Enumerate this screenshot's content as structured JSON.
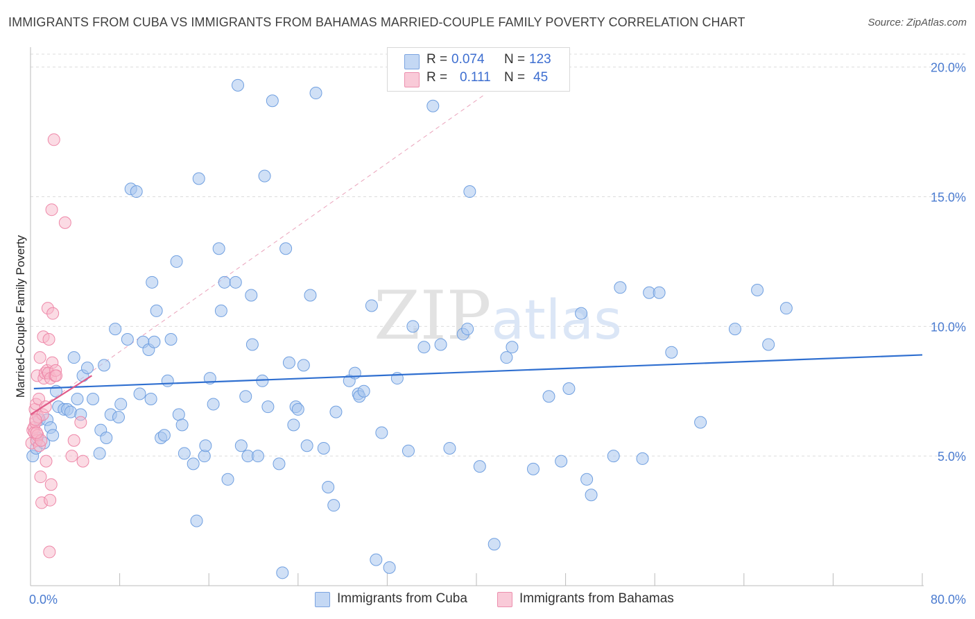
{
  "title": "IMMIGRANTS FROM CUBA VS IMMIGRANTS FROM BAHAMAS MARRIED-COUPLE FAMILY POVERTY CORRELATION CHART",
  "source": "Source: ZipAtlas.com",
  "watermark": "ZIPatlas",
  "legend_top": {
    "rows": [
      {
        "r_label": "R =",
        "r_value": "0.074",
        "n_label": "N =",
        "n_value": "123"
      },
      {
        "r_label": "R =",
        "r_value": "0.111",
        "n_label": "N =",
        "n_value": "45"
      }
    ]
  },
  "colors": {
    "cuba_fill": "#a9c6ee",
    "cuba_stroke": "#6f9fe0",
    "cuba_line": "#2f6fd0",
    "bahamas_fill": "#f7b8ca",
    "bahamas_stroke": "#ee87a8",
    "bahamas_line": "#e05a88",
    "axis_text": "#4a7bd0",
    "grid": "#dcdcdc"
  },
  "chart_data": {
    "type": "scatter",
    "xlabel": "",
    "ylabel": "Married-Couple Family Poverty",
    "xlim": [
      0,
      80
    ],
    "ylim": [
      0,
      20.5
    ],
    "x_tick_labels": [
      "0.0%",
      "80.0%"
    ],
    "y_ticks": [
      5,
      10,
      15,
      20
    ],
    "y_tick_labels": [
      "5.0%",
      "10.0%",
      "15.0%",
      "20.0%"
    ],
    "legend": [
      "Immigrants from Cuba",
      "Immigrants from Bahamas"
    ],
    "series": [
      {
        "name": "Immigrants from Cuba",
        "trend": {
          "x": [
            0.3,
            80.0
          ],
          "y": [
            7.6,
            8.9
          ]
        },
        "points": [
          [
            0.2,
            5.0
          ],
          [
            0.5,
            5.3
          ],
          [
            0.6,
            5.7
          ],
          [
            0.8,
            6.4
          ],
          [
            1.2,
            5.5
          ],
          [
            1.5,
            6.4
          ],
          [
            1.8,
            6.1
          ],
          [
            2.0,
            5.8
          ],
          [
            2.3,
            7.5
          ],
          [
            2.5,
            6.9
          ],
          [
            3.0,
            6.8
          ],
          [
            3.3,
            6.8
          ],
          [
            3.6,
            6.7
          ],
          [
            3.9,
            8.8
          ],
          [
            4.2,
            7.2
          ],
          [
            4.5,
            6.6
          ],
          [
            4.7,
            8.1
          ],
          [
            5.1,
            8.4
          ],
          [
            5.6,
            7.2
          ],
          [
            6.2,
            5.1
          ],
          [
            6.3,
            6.0
          ],
          [
            6.6,
            8.5
          ],
          [
            6.8,
            5.7
          ],
          [
            7.2,
            6.6
          ],
          [
            7.6,
            9.9
          ],
          [
            7.9,
            6.5
          ],
          [
            8.1,
            7.0
          ],
          [
            8.7,
            9.5
          ],
          [
            9.0,
            15.3
          ],
          [
            9.5,
            15.2
          ],
          [
            9.8,
            7.4
          ],
          [
            10.1,
            9.4
          ],
          [
            10.6,
            9.1
          ],
          [
            10.8,
            7.2
          ],
          [
            10.9,
            11.7
          ],
          [
            11.1,
            9.4
          ],
          [
            11.3,
            10.6
          ],
          [
            11.7,
            5.7
          ],
          [
            12.0,
            5.8
          ],
          [
            12.3,
            7.9
          ],
          [
            12.6,
            9.5
          ],
          [
            13.1,
            12.5
          ],
          [
            13.3,
            6.6
          ],
          [
            13.6,
            6.2
          ],
          [
            13.8,
            5.1
          ],
          [
            14.6,
            4.7
          ],
          [
            14.9,
            2.5
          ],
          [
            15.1,
            15.7
          ],
          [
            15.6,
            5.0
          ],
          [
            15.7,
            5.4
          ],
          [
            16.1,
            8.0
          ],
          [
            16.4,
            7.0
          ],
          [
            16.9,
            13.0
          ],
          [
            17.1,
            10.6
          ],
          [
            17.4,
            11.7
          ],
          [
            17.7,
            4.1
          ],
          [
            18.4,
            11.7
          ],
          [
            18.6,
            19.3
          ],
          [
            18.9,
            5.4
          ],
          [
            19.3,
            7.3
          ],
          [
            19.5,
            5.0
          ],
          [
            19.8,
            11.2
          ],
          [
            19.9,
            9.3
          ],
          [
            20.4,
            5.0
          ],
          [
            20.8,
            7.9
          ],
          [
            21.0,
            15.8
          ],
          [
            21.3,
            6.9
          ],
          [
            21.7,
            18.7
          ],
          [
            22.3,
            4.7
          ],
          [
            22.6,
            0.5
          ],
          [
            22.9,
            13.0
          ],
          [
            23.2,
            8.6
          ],
          [
            23.6,
            6.2
          ],
          [
            23.8,
            6.9
          ],
          [
            24.0,
            6.8
          ],
          [
            24.5,
            8.5
          ],
          [
            24.8,
            5.4
          ],
          [
            25.1,
            11.2
          ],
          [
            25.6,
            19.0
          ],
          [
            26.3,
            5.3
          ],
          [
            26.7,
            3.8
          ],
          [
            27.2,
            3.1
          ],
          [
            27.4,
            6.7
          ],
          [
            28.6,
            7.9
          ],
          [
            29.1,
            8.2
          ],
          [
            29.4,
            7.4
          ],
          [
            29.5,
            7.3
          ],
          [
            29.9,
            7.5
          ],
          [
            30.6,
            10.8
          ],
          [
            31.0,
            1.0
          ],
          [
            31.5,
            5.9
          ],
          [
            32.2,
            0.7
          ],
          [
            32.9,
            8.0
          ],
          [
            33.9,
            5.2
          ],
          [
            34.3,
            10.0
          ],
          [
            35.3,
            9.2
          ],
          [
            36.1,
            18.5
          ],
          [
            36.8,
            9.3
          ],
          [
            37.6,
            5.3
          ],
          [
            38.8,
            9.7
          ],
          [
            39.2,
            9.9
          ],
          [
            39.4,
            15.2
          ],
          [
            40.3,
            4.6
          ],
          [
            41.6,
            1.6
          ],
          [
            42.7,
            8.8
          ],
          [
            43.2,
            9.2
          ],
          [
            45.1,
            4.5
          ],
          [
            46.5,
            7.3
          ],
          [
            47.6,
            4.8
          ],
          [
            48.3,
            7.6
          ],
          [
            49.4,
            10.5
          ],
          [
            49.9,
            4.1
          ],
          [
            50.3,
            3.5
          ],
          [
            52.3,
            5.0
          ],
          [
            52.9,
            11.5
          ],
          [
            54.9,
            4.9
          ],
          [
            55.5,
            11.3
          ],
          [
            56.4,
            11.3
          ],
          [
            57.5,
            9.0
          ],
          [
            60.1,
            6.3
          ],
          [
            63.2,
            9.9
          ],
          [
            65.2,
            11.4
          ],
          [
            66.2,
            9.3
          ],
          [
            67.8,
            10.7
          ]
        ]
      },
      {
        "name": "Immigrants from Bahamas",
        "trend": {
          "x": [
            0.0,
            5.5
          ],
          "y": [
            6.6,
            8.1
          ]
        },
        "trend_extended": {
          "x": [
            0.0,
            40.6
          ],
          "y": [
            6.6,
            18.9
          ]
        },
        "points": [
          [
            0.1,
            5.5
          ],
          [
            0.2,
            6.0
          ],
          [
            0.3,
            6.1
          ],
          [
            0.35,
            5.9
          ],
          [
            0.4,
            6.8
          ],
          [
            0.45,
            6.3
          ],
          [
            0.5,
            7.0
          ],
          [
            0.55,
            5.6
          ],
          [
            0.6,
            8.1
          ],
          [
            0.65,
            5.8
          ],
          [
            0.7,
            6.5
          ],
          [
            0.75,
            7.2
          ],
          [
            0.8,
            5.4
          ],
          [
            0.85,
            8.8
          ],
          [
            0.9,
            4.2
          ],
          [
            0.95,
            5.6
          ],
          [
            1.0,
            3.2
          ],
          [
            1.1,
            6.6
          ],
          [
            1.15,
            9.6
          ],
          [
            1.2,
            8.0
          ],
          [
            1.3,
            8.2
          ],
          [
            1.35,
            6.9
          ],
          [
            1.4,
            4.8
          ],
          [
            1.5,
            8.3
          ],
          [
            1.55,
            10.7
          ],
          [
            1.6,
            8.2
          ],
          [
            1.65,
            9.5
          ],
          [
            1.7,
            1.3
          ],
          [
            1.75,
            3.3
          ],
          [
            1.8,
            8.0
          ],
          [
            1.85,
            3.9
          ],
          [
            1.9,
            14.5
          ],
          [
            1.95,
            8.6
          ],
          [
            2.0,
            10.5
          ],
          [
            2.1,
            17.2
          ],
          [
            2.2,
            8.1
          ],
          [
            2.25,
            8.3
          ],
          [
            2.3,
            8.1
          ],
          [
            3.1,
            14.0
          ],
          [
            3.7,
            5.0
          ],
          [
            3.9,
            5.6
          ],
          [
            4.5,
            6.3
          ],
          [
            4.7,
            4.8
          ],
          [
            0.55,
            5.9
          ],
          [
            0.45,
            6.4
          ]
        ]
      }
    ]
  },
  "legend_bottom": {
    "items": [
      {
        "label": "Immigrants from Cuba"
      },
      {
        "label": "Immigrants from Bahamas"
      }
    ]
  }
}
